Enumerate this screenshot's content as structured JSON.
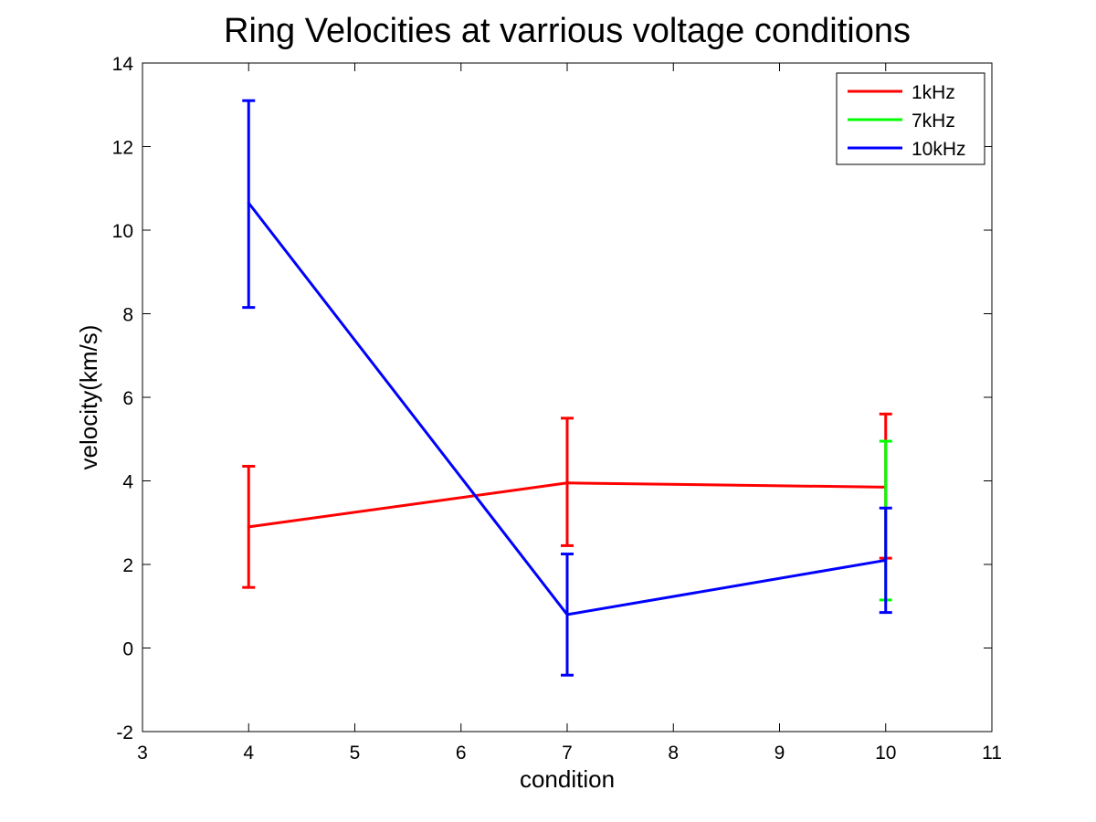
{
  "chart_data": {
    "type": "line",
    "title": "Ring Velocities at varrious voltage conditions",
    "xlabel": "condition",
    "ylabel": "velocity(km/s)",
    "xlim": [
      3,
      11
    ],
    "ylim": [
      -2,
      14
    ],
    "xticks": [
      3,
      4,
      5,
      6,
      7,
      8,
      9,
      10,
      11
    ],
    "yticks": [
      -2,
      0,
      2,
      4,
      6,
      8,
      10,
      12,
      14
    ],
    "grid": false,
    "legend_position": "top-right",
    "error_bars": true,
    "series": [
      {
        "name": "1kHz",
        "color": "#ff0000",
        "x": [
          4,
          7,
          10
        ],
        "y": [
          2.9,
          3.95,
          3.85
        ],
        "err_low": [
          1.45,
          2.45,
          2.15
        ],
        "err_high": [
          4.35,
          5.5,
          5.6
        ]
      },
      {
        "name": "7kHz",
        "color": "#00ff00",
        "x": [
          10
        ],
        "y": [
          3.05
        ],
        "err_low": [
          1.15
        ],
        "err_high": [
          4.95
        ]
      },
      {
        "name": "10kHz",
        "color": "#0000ff",
        "x": [
          4,
          7,
          10
        ],
        "y": [
          10.65,
          0.8,
          2.1
        ],
        "err_low": [
          8.15,
          -0.65,
          0.85
        ],
        "err_high": [
          13.1,
          2.25,
          3.35
        ]
      }
    ]
  }
}
